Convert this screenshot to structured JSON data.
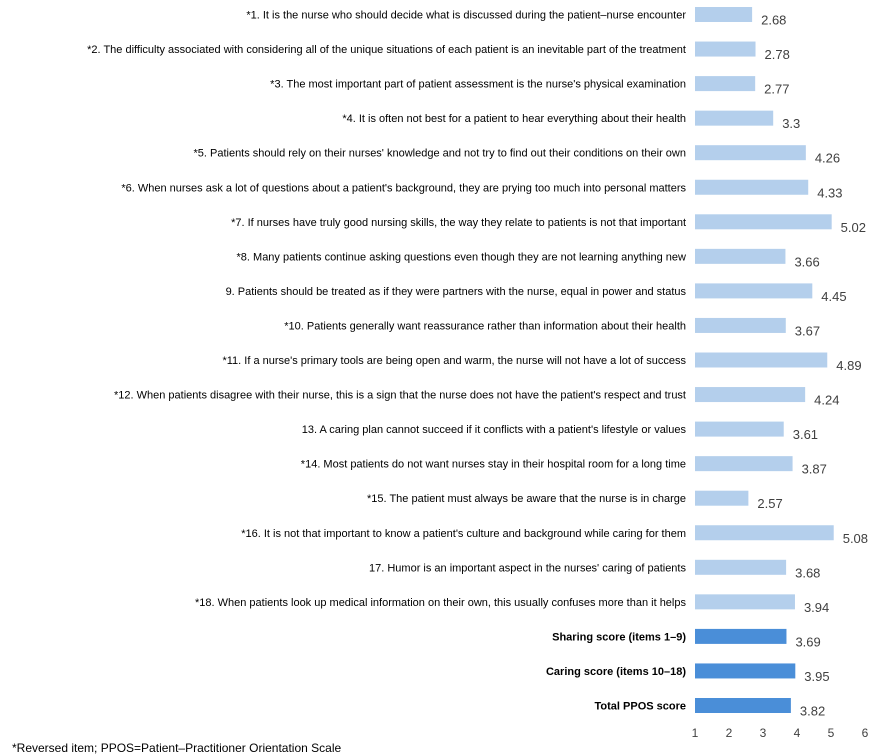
{
  "chart_data": {
    "type": "bar",
    "orientation": "horizontal",
    "categories": [
      "*1. It is the nurse who should decide what is discussed during the patient–nurse encounter",
      "*2. The difficulty associated with considering all of the unique situations of each patient is an inevitable part of the treatment",
      "*3. The most important part of patient assessment is the nurse's physical examination",
      "*4. It is often not best for a patient to hear everything about their health",
      "*5. Patients should rely on their nurses' knowledge and not try to find out their conditions on their own",
      "*6. When nurses ask a lot of questions about a patient's background, they are prying too much into personal matters",
      "*7. If nurses have truly good nursing skills, the way they relate to patients is not that important",
      "*8. Many patients continue asking questions even though they are not learning anything new",
      "9. Patients should be treated as if they were partners with the nurse, equal in power and status",
      "*10. Patients generally want reassurance rather than information about their health",
      "*11. If a nurse's primary tools are being open and warm, the nurse will not have a lot of success",
      "*12. When patients disagree with their nurse, this is a sign that the nurse does not have the patient's respect and trust",
      "13. A caring plan cannot succeed if it conflicts with a patient's lifestyle or values",
      "*14. Most patients do not want nurses stay in their hospital room for a long time",
      "*15. The patient must always be aware that the nurse is in charge",
      "*16. It is not that important to know a patient's culture and background while caring for them",
      "17. Humor is an important aspect in the nurses' caring of patients",
      "*18. When patients look up medical information on their own, this usually confuses more than it helps",
      "Sharing score (items 1–9)",
      "Caring score (items 10–18)",
      "Total PPOS score"
    ],
    "values": [
      2.68,
      2.78,
      2.77,
      3.3,
      4.26,
      4.33,
      5.02,
      3.66,
      4.45,
      3.67,
      4.89,
      4.24,
      3.61,
      3.87,
      2.57,
      5.08,
      3.68,
      3.94,
      3.69,
      3.95,
      3.82
    ],
    "value_labels": [
      "2.68",
      "2.78",
      "2.77",
      "3.3",
      "4.26",
      "4.33",
      "5.02",
      "3.66",
      "4.45",
      "3.67",
      "4.89",
      "4.24",
      "3.61",
      "3.87",
      "2.57",
      "5.08",
      "3.68",
      "3.94",
      "3.69",
      "3.95",
      "3.82"
    ],
    "bold_categories": [
      18,
      19,
      20
    ],
    "xlim": [
      1,
      6
    ],
    "xticks": [
      "1",
      "2",
      "3",
      "4",
      "5",
      "6"
    ],
    "colors": {
      "item": "#b4cfec",
      "score": "#4a8ed8"
    },
    "grid": false,
    "title": "",
    "xlabel": "",
    "ylabel": "",
    "footnote": "*Reversed item; PPOS=Patient–Practitioner Orientation Scale"
  }
}
